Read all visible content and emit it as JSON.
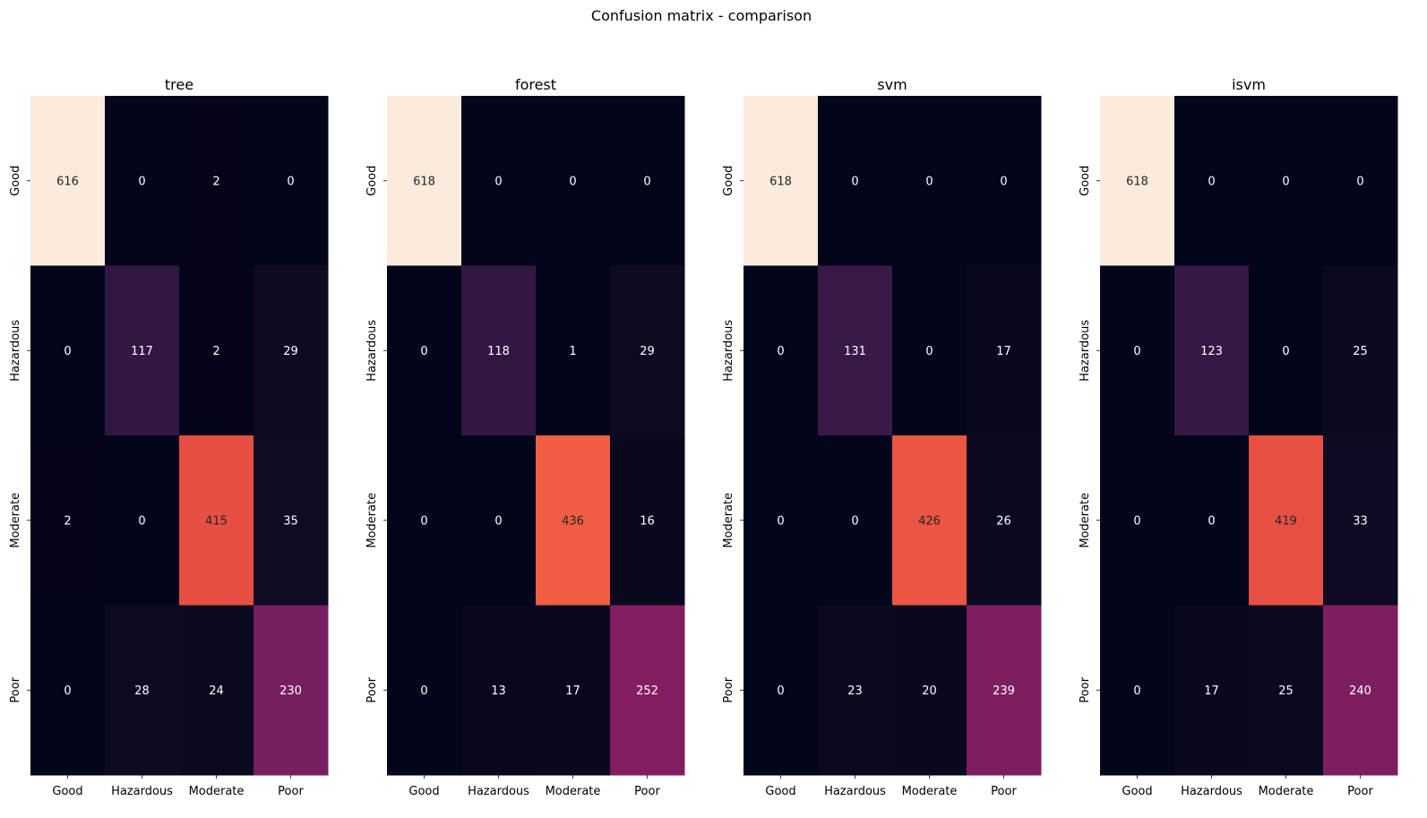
{
  "figure": {
    "title": "Confusion matrix - comparison"
  },
  "chart_data": [
    {
      "type": "heatmap",
      "title": "tree",
      "x_categories": [
        "Good",
        "Hazardous",
        "Moderate",
        "Poor"
      ],
      "y_categories": [
        "Good",
        "Hazardous",
        "Moderate",
        "Poor"
      ],
      "values": [
        [
          616,
          0,
          2,
          0
        ],
        [
          0,
          117,
          2,
          29
        ],
        [
          2,
          0,
          415,
          35
        ],
        [
          0,
          28,
          24,
          230
        ]
      ],
      "colormap": "rocket",
      "vmin": 0,
      "colorbar": false
    },
    {
      "type": "heatmap",
      "title": "forest",
      "x_categories": [
        "Good",
        "Hazardous",
        "Moderate",
        "Poor"
      ],
      "y_categories": [
        "Good",
        "Hazardous",
        "Moderate",
        "Poor"
      ],
      "values": [
        [
          618,
          0,
          0,
          0
        ],
        [
          0,
          118,
          1,
          29
        ],
        [
          0,
          0,
          436,
          16
        ],
        [
          0,
          13,
          17,
          252
        ]
      ],
      "colormap": "rocket",
      "vmin": 0,
      "colorbar": false
    },
    {
      "type": "heatmap",
      "title": "svm",
      "x_categories": [
        "Good",
        "Hazardous",
        "Moderate",
        "Poor"
      ],
      "y_categories": [
        "Good",
        "Hazardous",
        "Moderate",
        "Poor"
      ],
      "values": [
        [
          618,
          0,
          0,
          0
        ],
        [
          0,
          131,
          0,
          17
        ],
        [
          0,
          0,
          426,
          26
        ],
        [
          0,
          23,
          20,
          239
        ]
      ],
      "colormap": "rocket",
      "vmin": 0,
      "colorbar": false
    },
    {
      "type": "heatmap",
      "title": "isvm",
      "x_categories": [
        "Good",
        "Hazardous",
        "Moderate",
        "Poor"
      ],
      "y_categories": [
        "Good",
        "Hazardous",
        "Moderate",
        "Poor"
      ],
      "values": [
        [
          618,
          0,
          0,
          0
        ],
        [
          0,
          123,
          0,
          25
        ],
        [
          0,
          0,
          419,
          33
        ],
        [
          0,
          17,
          25,
          240
        ]
      ],
      "colormap": "rocket",
      "vmin": 0,
      "colorbar": false
    }
  ]
}
